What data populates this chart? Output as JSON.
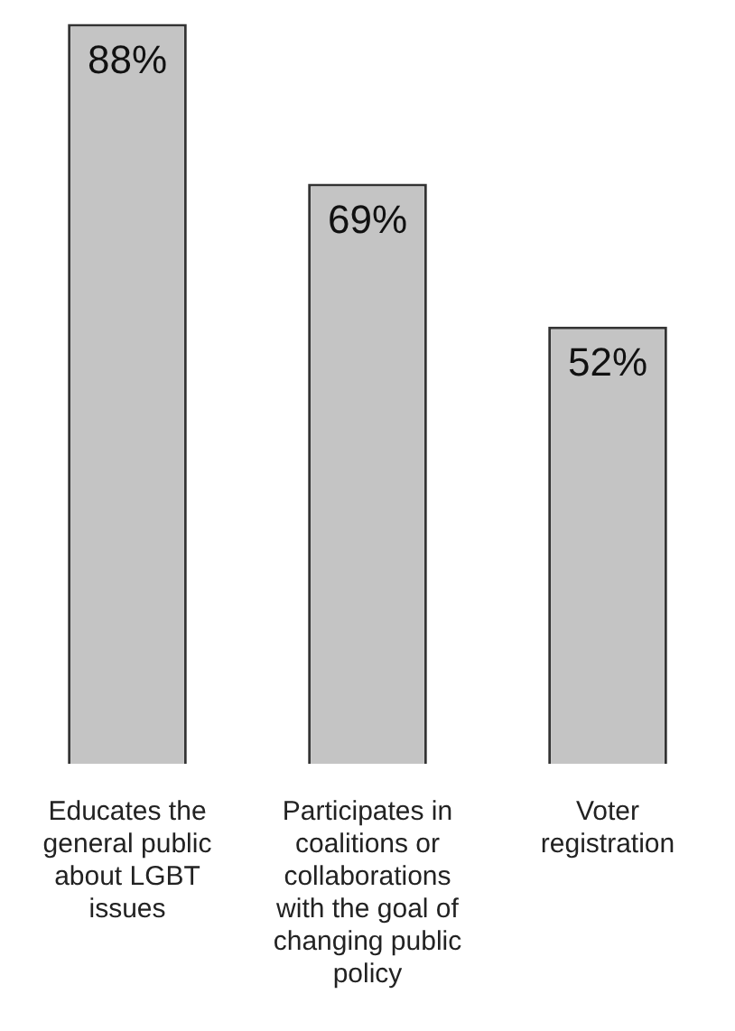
{
  "chart_data": {
    "type": "bar",
    "categories": [
      "Educates the general public about LGBT issues",
      "Participates in coalitions or collaborations with the goal of changing public policy",
      "Voter registration"
    ],
    "values": [
      88,
      69,
      52
    ],
    "color": "#c4c4c4",
    "value_labels": [
      "88%",
      "69%",
      "52%"
    ],
    "grid": false,
    "legend": false
  }
}
